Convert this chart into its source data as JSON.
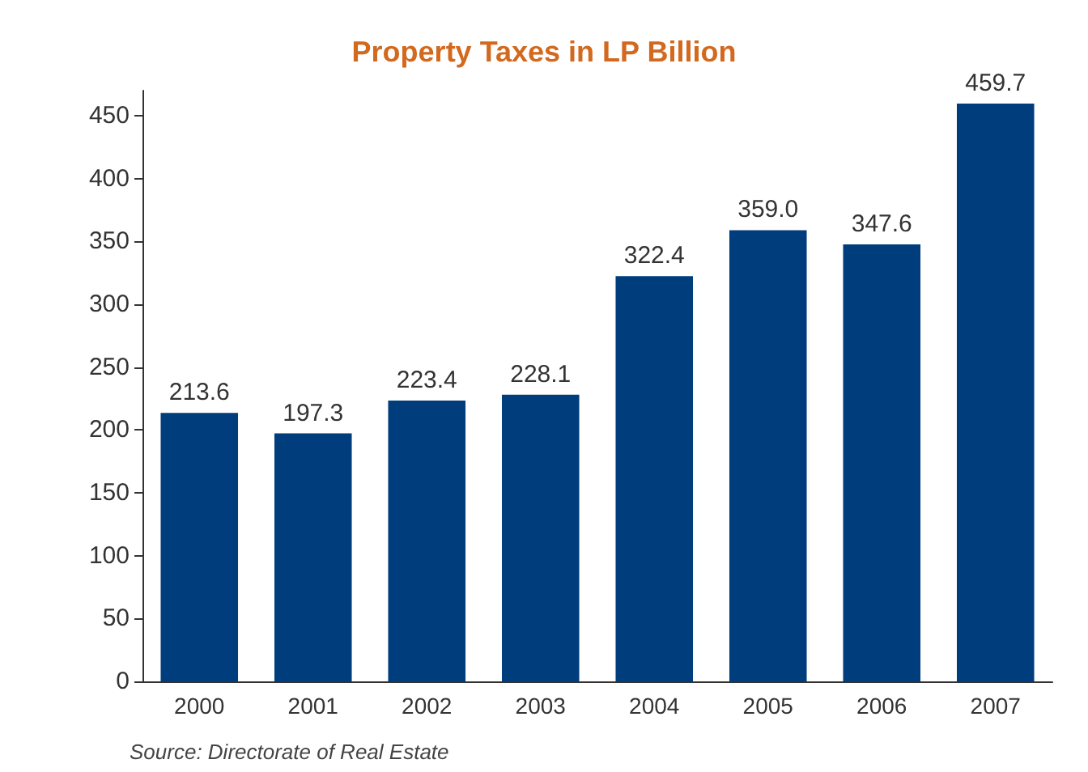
{
  "chart_data": {
    "type": "bar",
    "title": "Property Taxes in LP Billion",
    "categories": [
      "2000",
      "2001",
      "2002",
      "2003",
      "2004",
      "2005",
      "2006",
      "2007"
    ],
    "values": [
      213.6,
      197.3,
      223.4,
      228.1,
      322.4,
      359.0,
      347.6,
      459.7
    ],
    "value_labels": [
      "213.6",
      "197.3",
      "223.4",
      "228.1",
      "322.4",
      "359.0",
      "347.6",
      "459.7"
    ],
    "color": "#003d7c",
    "ylim": [
      0,
      470
    ],
    "yticks": [
      0,
      50,
      100,
      150,
      200,
      250,
      300,
      350,
      400,
      450
    ],
    "grid": false,
    "annotations": [
      "Source: Directorate of Real Estate"
    ]
  }
}
